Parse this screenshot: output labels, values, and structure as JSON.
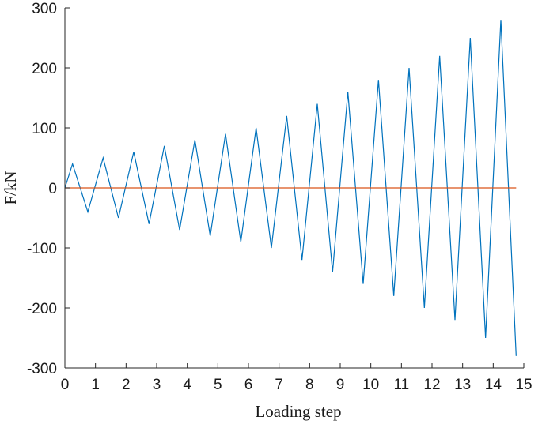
{
  "chart_data": {
    "type": "line",
    "title": "",
    "xlabel": "Loading step",
    "ylabel": "F/kN",
    "xlim": [
      0,
      15
    ],
    "ylim": [
      -300,
      300
    ],
    "grid": false,
    "legend": "none",
    "x_ticks": [
      0,
      1,
      2,
      3,
      4,
      5,
      6,
      7,
      8,
      9,
      10,
      11,
      12,
      13,
      14,
      15
    ],
    "x_tick_labels": [
      "0",
      "1",
      "2",
      "3",
      "4",
      "5",
      "6",
      "7",
      "8",
      "9",
      "10",
      "11",
      "12",
      "13",
      "14",
      "15"
    ],
    "y_ticks": [
      300,
      200,
      100,
      0,
      -100,
      -200,
      -300
    ],
    "y_tick_labels": [
      "300",
      "200",
      "100",
      "0",
      "-100",
      "-200",
      "-300"
    ],
    "series": [
      {
        "color": "#0072BD",
        "x": [
          0,
          0.25,
          0.75,
          1.25,
          1.75,
          2.25,
          2.75,
          3.25,
          3.75,
          4.25,
          4.75,
          5.25,
          5.75,
          6.25,
          6.75,
          7.25,
          7.75,
          8.25,
          8.75,
          9.25,
          9.75,
          10.25,
          10.75,
          11.25,
          11.75,
          12.25,
          12.75,
          13.25,
          13.75,
          14.25,
          14.75
        ],
        "y": [
          0,
          40,
          -40,
          50,
          -50,
          60,
          -60,
          70,
          -70,
          80,
          -80,
          90,
          -90,
          100,
          -100,
          120,
          -120,
          140,
          -140,
          160,
          -160,
          180,
          -180,
          200,
          -200,
          220,
          -220,
          250,
          -250,
          280,
          -280
        ]
      },
      {
        "color": "#D95319",
        "x": [
          0,
          14.75
        ],
        "y": [
          0,
          0
        ]
      }
    ]
  }
}
